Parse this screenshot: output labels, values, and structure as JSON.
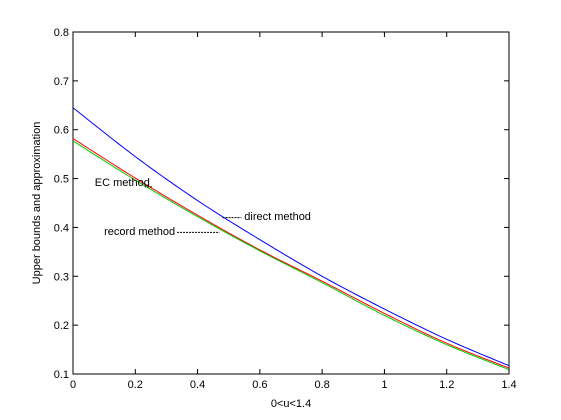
{
  "chart_data": {
    "type": "line",
    "title": "",
    "xlabel": "0<u<1.4",
    "ylabel": "Upper bounds and approximation",
    "xlim": [
      0,
      1.4
    ],
    "ylim": [
      0.1,
      0.8
    ],
    "grid": false,
    "xticks": [
      0,
      0.2,
      0.4,
      0.6,
      0.8,
      1,
      1.2,
      1.4
    ],
    "yticks": [
      0.1,
      0.2,
      0.3,
      0.4,
      0.5,
      0.6,
      0.7,
      0.8
    ],
    "xtick_labels": [
      "0",
      "0.2",
      "0.4",
      "0.6",
      "0.8",
      "1",
      "1.2",
      "1.4"
    ],
    "ytick_labels": [
      "0.1",
      "0.2",
      "0.3",
      "0.4",
      "0.5",
      "0.6",
      "0.7",
      "0.8"
    ],
    "series": [
      {
        "name": "direct method",
        "color": "#0000ff",
        "x": [
          0,
          0.2,
          0.4,
          0.6,
          0.8,
          1.0,
          1.2,
          1.4
        ],
        "y": [
          0.645,
          0.545,
          0.455,
          0.375,
          0.3,
          0.233,
          0.171,
          0.117
        ]
      },
      {
        "name": "EC method",
        "color": "#ff0000",
        "x": [
          0,
          0.2,
          0.4,
          0.6,
          0.8,
          1.0,
          1.2,
          1.4
        ],
        "y": [
          0.582,
          0.501,
          0.425,
          0.354,
          0.29,
          0.224,
          0.163,
          0.112
        ]
      },
      {
        "name": "record method",
        "color": "#00cc00",
        "x": [
          0,
          0.2,
          0.4,
          0.6,
          0.8,
          1.0,
          1.2,
          1.4
        ],
        "y": [
          0.577,
          0.497,
          0.422,
          0.352,
          0.287,
          0.22,
          0.16,
          0.109
        ]
      }
    ],
    "annotations": [
      {
        "text": "EC method",
        "leader": "----",
        "x": 0.07,
        "y": 0.485,
        "anchor_x": 0.23,
        "anchor_y": 0.483
      },
      {
        "text": "direct method",
        "leader": "-------",
        "x": 0.55,
        "y": 0.415,
        "anchor_x": 0.48,
        "anchor_y": 0.42
      },
      {
        "text": "record method",
        "leader": "--------",
        "x": 0.1,
        "y": 0.385,
        "anchor_x": 0.47,
        "anchor_y": 0.39
      }
    ]
  }
}
